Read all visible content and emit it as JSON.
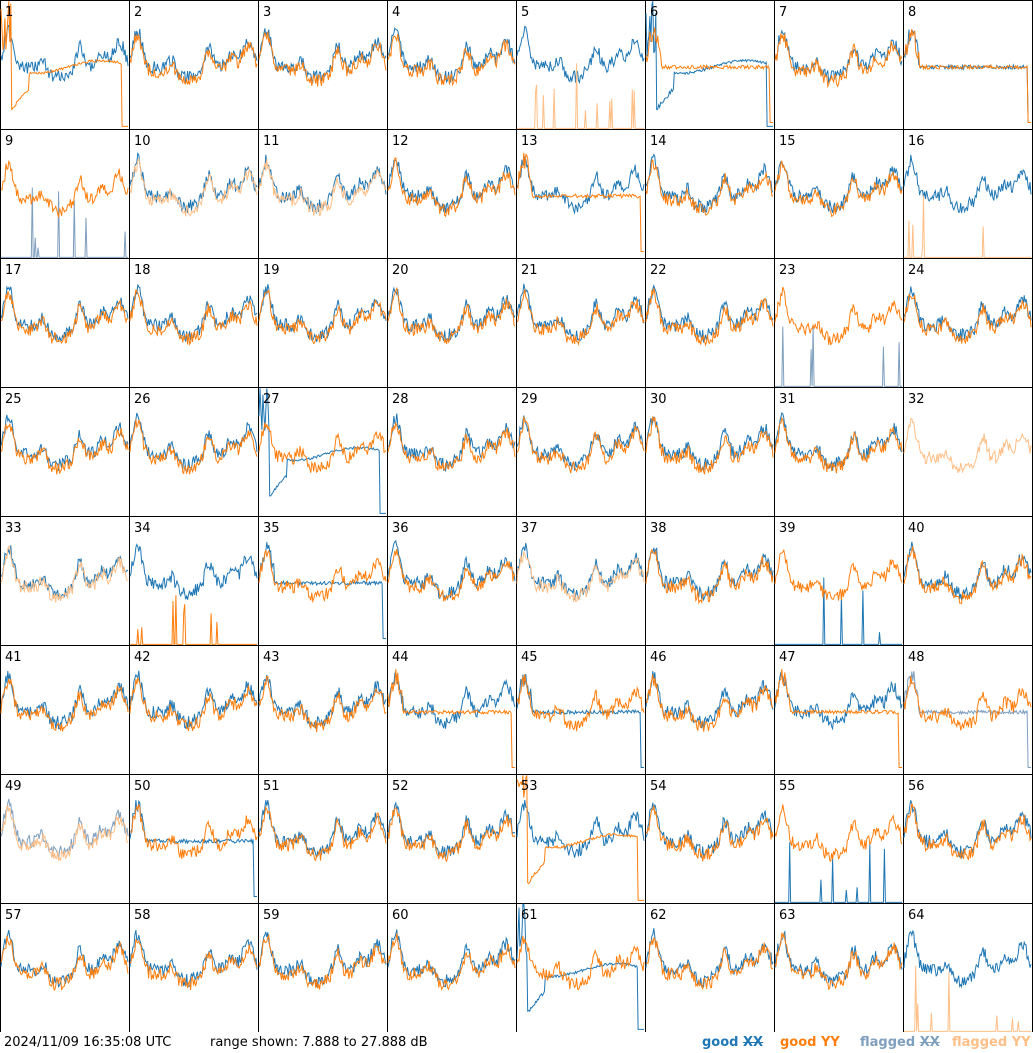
{
  "chart_data": {
    "type": "line",
    "grid": {
      "rows": 8,
      "cols": 8
    },
    "y_range_db": [
      7.888,
      27.888
    ],
    "series_colors": {
      "good_xx": "#1f77b4",
      "good_yy": "#ff7f0e",
      "flagged_xx": "#7f9fbf",
      "flagged_yy": "#ffbf87"
    },
    "panels": [
      {
        "label": "1",
        "xx": "good",
        "yy": "good",
        "xx_shape": "normal",
        "yy_shape": "dip"
      },
      {
        "label": "2",
        "xx": "good",
        "yy": "good",
        "xx_shape": "normal",
        "yy_shape": "normal"
      },
      {
        "label": "3",
        "xx": "good",
        "yy": "good",
        "xx_shape": "normal",
        "yy_shape": "normal"
      },
      {
        "label": "4",
        "xx": "good",
        "yy": "good",
        "xx_shape": "normal",
        "yy_shape": "normal"
      },
      {
        "label": "5",
        "xx": "good",
        "yy": "flagged",
        "xx_shape": "normal",
        "yy_shape": "spikes"
      },
      {
        "label": "6",
        "xx": "good",
        "yy": "good",
        "xx_shape": "dip",
        "yy_shape": "flat"
      },
      {
        "label": "7",
        "xx": "good",
        "yy": "good",
        "xx_shape": "normal",
        "yy_shape": "normal"
      },
      {
        "label": "8",
        "xx": "good",
        "yy": "good",
        "xx_shape": "flat",
        "yy_shape": "flat"
      },
      {
        "label": "9",
        "xx": "flagged",
        "yy": "good",
        "xx_shape": "spikes",
        "yy_shape": "normal"
      },
      {
        "label": "10",
        "xx": "good",
        "yy": "flagged",
        "xx_shape": "normal",
        "yy_shape": "normal"
      },
      {
        "label": "11",
        "xx": "good",
        "yy": "flagged",
        "xx_shape": "normal",
        "yy_shape": "normal"
      },
      {
        "label": "12",
        "xx": "good",
        "yy": "good",
        "xx_shape": "normal",
        "yy_shape": "normal"
      },
      {
        "label": "13",
        "xx": "good",
        "yy": "good",
        "xx_shape": "normal",
        "yy_shape": "flat"
      },
      {
        "label": "14",
        "xx": "good",
        "yy": "good",
        "xx_shape": "normal",
        "yy_shape": "normal"
      },
      {
        "label": "15",
        "xx": "good",
        "yy": "good",
        "xx_shape": "normal",
        "yy_shape": "normal"
      },
      {
        "label": "16",
        "xx": "good",
        "yy": "flagged",
        "xx_shape": "normal",
        "yy_shape": "spikes"
      },
      {
        "label": "17",
        "xx": "good",
        "yy": "good",
        "xx_shape": "normal",
        "yy_shape": "normal"
      },
      {
        "label": "18",
        "xx": "good",
        "yy": "good",
        "xx_shape": "normal",
        "yy_shape": "normal"
      },
      {
        "label": "19",
        "xx": "good",
        "yy": "good",
        "xx_shape": "normal",
        "yy_shape": "normal"
      },
      {
        "label": "20",
        "xx": "good",
        "yy": "good",
        "xx_shape": "normal",
        "yy_shape": "normal"
      },
      {
        "label": "21",
        "xx": "good",
        "yy": "good",
        "xx_shape": "normal",
        "yy_shape": "normal"
      },
      {
        "label": "22",
        "xx": "good",
        "yy": "good",
        "xx_shape": "normal",
        "yy_shape": "normal"
      },
      {
        "label": "23",
        "xx": "flagged",
        "yy": "good",
        "xx_shape": "spikes",
        "yy_shape": "normal"
      },
      {
        "label": "24",
        "xx": "good",
        "yy": "good",
        "xx_shape": "normal",
        "yy_shape": "normal"
      },
      {
        "label": "25",
        "xx": "good",
        "yy": "good",
        "xx_shape": "normal",
        "yy_shape": "normal"
      },
      {
        "label": "26",
        "xx": "good",
        "yy": "good",
        "xx_shape": "normal",
        "yy_shape": "normal"
      },
      {
        "label": "27",
        "xx": "good",
        "yy": "good",
        "xx_shape": "dip",
        "yy_shape": "normal"
      },
      {
        "label": "28",
        "xx": "good",
        "yy": "good",
        "xx_shape": "normal",
        "yy_shape": "normal"
      },
      {
        "label": "29",
        "xx": "good",
        "yy": "good",
        "xx_shape": "normal",
        "yy_shape": "normal"
      },
      {
        "label": "30",
        "xx": "good",
        "yy": "good",
        "xx_shape": "normal",
        "yy_shape": "normal"
      },
      {
        "label": "31",
        "xx": "good",
        "yy": "good",
        "xx_shape": "normal",
        "yy_shape": "normal"
      },
      {
        "label": "32",
        "xx": "flagged",
        "yy": "flagged",
        "xx_shape": "none",
        "yy_shape": "normal"
      },
      {
        "label": "33",
        "xx": "good",
        "yy": "flagged",
        "xx_shape": "normal",
        "yy_shape": "normal"
      },
      {
        "label": "34",
        "xx": "good",
        "yy": "good",
        "xx_shape": "normal",
        "yy_shape": "spikes"
      },
      {
        "label": "35",
        "xx": "good",
        "yy": "good",
        "xx_shape": "flat",
        "yy_shape": "normal"
      },
      {
        "label": "36",
        "xx": "good",
        "yy": "good",
        "xx_shape": "normal",
        "yy_shape": "normal"
      },
      {
        "label": "37",
        "xx": "good",
        "yy": "flagged",
        "xx_shape": "normal",
        "yy_shape": "normal"
      },
      {
        "label": "38",
        "xx": "good",
        "yy": "good",
        "xx_shape": "normal",
        "yy_shape": "normal"
      },
      {
        "label": "39",
        "xx": "good",
        "yy": "good",
        "xx_shape": "spikes",
        "yy_shape": "normal"
      },
      {
        "label": "40",
        "xx": "good",
        "yy": "good",
        "xx_shape": "normal",
        "yy_shape": "normal"
      },
      {
        "label": "41",
        "xx": "good",
        "yy": "good",
        "xx_shape": "normal",
        "yy_shape": "normal"
      },
      {
        "label": "42",
        "xx": "good",
        "yy": "good",
        "xx_shape": "normal",
        "yy_shape": "normal"
      },
      {
        "label": "43",
        "xx": "good",
        "yy": "good",
        "xx_shape": "normal",
        "yy_shape": "normal"
      },
      {
        "label": "44",
        "xx": "good",
        "yy": "good",
        "xx_shape": "normal",
        "yy_shape": "flat"
      },
      {
        "label": "45",
        "xx": "good",
        "yy": "good",
        "xx_shape": "flat",
        "yy_shape": "normal"
      },
      {
        "label": "46",
        "xx": "good",
        "yy": "good",
        "xx_shape": "normal",
        "yy_shape": "normal"
      },
      {
        "label": "47",
        "xx": "good",
        "yy": "good",
        "xx_shape": "normal",
        "yy_shape": "flat"
      },
      {
        "label": "48",
        "xx": "flagged",
        "yy": "good",
        "xx_shape": "flat",
        "yy_shape": "normal"
      },
      {
        "label": "49",
        "xx": "flagged",
        "yy": "flagged",
        "xx_shape": "normal",
        "yy_shape": "normal"
      },
      {
        "label": "50",
        "xx": "good",
        "yy": "good",
        "xx_shape": "flat",
        "yy_shape": "normal"
      },
      {
        "label": "51",
        "xx": "good",
        "yy": "good",
        "xx_shape": "normal",
        "yy_shape": "normal"
      },
      {
        "label": "52",
        "xx": "good",
        "yy": "good",
        "xx_shape": "normal",
        "yy_shape": "normal"
      },
      {
        "label": "53",
        "xx": "good",
        "yy": "good",
        "xx_shape": "normal",
        "yy_shape": "dip"
      },
      {
        "label": "54",
        "xx": "good",
        "yy": "good",
        "xx_shape": "normal",
        "yy_shape": "normal"
      },
      {
        "label": "55",
        "xx": "good",
        "yy": "good",
        "xx_shape": "spikes",
        "yy_shape": "normal"
      },
      {
        "label": "56",
        "xx": "good",
        "yy": "good",
        "xx_shape": "normal",
        "yy_shape": "normal"
      },
      {
        "label": "57",
        "xx": "good",
        "yy": "good",
        "xx_shape": "normal",
        "yy_shape": "normal"
      },
      {
        "label": "58",
        "xx": "good",
        "yy": "good",
        "xx_shape": "normal",
        "yy_shape": "normal"
      },
      {
        "label": "59",
        "xx": "good",
        "yy": "good",
        "xx_shape": "normal",
        "yy_shape": "normal"
      },
      {
        "label": "60",
        "xx": "good",
        "yy": "good",
        "xx_shape": "normal",
        "yy_shape": "normal"
      },
      {
        "label": "61",
        "xx": "good",
        "yy": "good",
        "xx_shape": "dip",
        "yy_shape": "normal"
      },
      {
        "label": "62",
        "xx": "good",
        "yy": "good",
        "xx_shape": "normal",
        "yy_shape": "normal"
      },
      {
        "label": "63",
        "xx": "good",
        "yy": "good",
        "xx_shape": "normal",
        "yy_shape": "normal"
      },
      {
        "label": "64",
        "xx": "good",
        "yy": "flagged",
        "xx_shape": "normal",
        "yy_shape": "spikes"
      }
    ]
  },
  "footer": {
    "timestamp": "2024/11/09 16:35:08 UTC",
    "range_text": "range shown: 7.888 to 27.888 dB",
    "legend": [
      {
        "key": "good_xx",
        "word": "good",
        "pol": "XX",
        "color": "#1f77b4",
        "pol_struck": true
      },
      {
        "key": "good_yy",
        "word": "good",
        "pol": "YY",
        "color": "#ff7f0e",
        "pol_struck": false
      },
      {
        "key": "flagged_xx",
        "word": "flagged",
        "pol": "XX",
        "color": "#7f9fbf",
        "pol_struck": true
      },
      {
        "key": "flagged_yy",
        "word": "flagged",
        "pol": "YY",
        "color": "#ffbf87",
        "pol_struck": false
      }
    ]
  }
}
